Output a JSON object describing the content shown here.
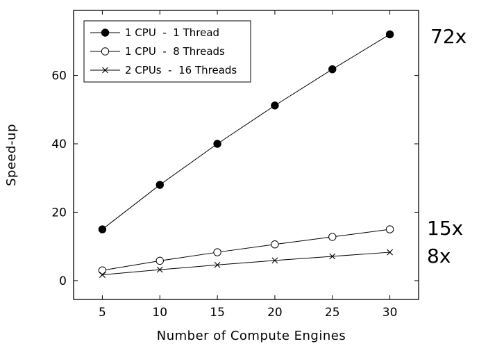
{
  "chart_data": {
    "type": "line",
    "title": "",
    "xlabel": "Number of Compute Engines",
    "ylabel": "Speed-up",
    "x": [
      5,
      10,
      15,
      20,
      25,
      30
    ],
    "xlim": [
      2.5,
      32.5
    ],
    "ylim": [
      -5.5,
      79
    ],
    "xticks": [
      5,
      10,
      15,
      20,
      25,
      30
    ],
    "yticks": [
      0,
      20,
      40,
      60
    ],
    "grid": false,
    "legend_position": "top-left",
    "series": [
      {
        "name": "1 CPU  -  1 Thread",
        "marker": "filled-circle",
        "values": [
          15,
          28,
          40,
          51.2,
          61.8,
          72
        ]
      },
      {
        "name": "1 CPU  -  8 Threads",
        "marker": "open-circle",
        "values": [
          3,
          5.8,
          8.3,
          10.6,
          12.8,
          15
        ]
      },
      {
        "name": "2 CPUs  -  16 Threads",
        "marker": "cross",
        "values": [
          1.7,
          3.2,
          4.6,
          5.9,
          7.1,
          8.3
        ]
      }
    ],
    "annotations": [
      "72x",
      "15x",
      "8x"
    ]
  }
}
